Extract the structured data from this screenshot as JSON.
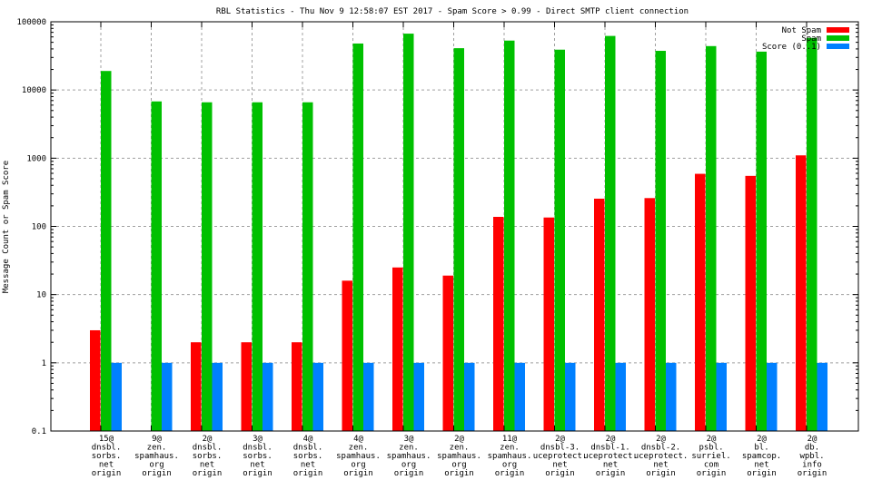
{
  "chart_data": {
    "type": "bar",
    "title": "RBL Statistics - Thu Nov  9 12:58:07 EST 2017 - Spam Score > 0.99 - Direct SMTP client connection",
    "xlabel": "",
    "ylabel": "Message Count or Spam Score",
    "yscale": "log",
    "ylim": [
      0.1,
      100000
    ],
    "yticks": [
      "100000",
      "10000",
      "1000",
      "100",
      "10",
      "1",
      "0.1"
    ],
    "grid": true,
    "legend_position": "top-right",
    "categories": [
      [
        "15@",
        "dnsbl.",
        "sorbs.",
        "net",
        "origin"
      ],
      [
        "9@",
        "zen.",
        "spamhaus.",
        "org",
        "origin"
      ],
      [
        "2@",
        "dnsbl.",
        "sorbs.",
        "net",
        "origin"
      ],
      [
        "3@",
        "dnsbl.",
        "sorbs.",
        "net",
        "origin"
      ],
      [
        "4@",
        "dnsbl.",
        "sorbs.",
        "net",
        "origin"
      ],
      [
        "4@",
        "zen.",
        "spamhaus.",
        "org",
        "origin"
      ],
      [
        "3@",
        "zen.",
        "spamhaus.",
        "org",
        "origin"
      ],
      [
        "2@",
        "zen.",
        "spamhaus.",
        "org",
        "origin"
      ],
      [
        "11@",
        "zen.",
        "spamhaus.",
        "org",
        "origin"
      ],
      [
        "2@",
        "dnsbl-3.",
        "uceprotect.",
        "net",
        "origin"
      ],
      [
        "2@",
        "dnsbl-1.",
        "uceprotect.",
        "net",
        "origin"
      ],
      [
        "2@",
        "dnsbl-2.",
        "uceprotect.",
        "net",
        "origin"
      ],
      [
        "2@",
        "psbl.",
        "surriel.",
        "com",
        "origin"
      ],
      [
        "2@",
        "bl.",
        "spamcop.",
        "net",
        "origin"
      ],
      [
        "2@",
        "db.",
        "wpbl.",
        "info",
        "origin"
      ]
    ],
    "series": [
      {
        "name": "Not Spam",
        "color": "#ff0000",
        "values": [
          3,
          0,
          2,
          2,
          2,
          16,
          25,
          19,
          138,
          135,
          255,
          260,
          590,
          550,
          1100
        ]
      },
      {
        "name": "Spam",
        "color": "#00c000",
        "values": [
          19000,
          6800,
          6600,
          6600,
          6600,
          48000,
          67000,
          41000,
          53000,
          39000,
          62000,
          37500,
          44000,
          36500,
          58000
        ]
      },
      {
        "name": "Score (0..1)",
        "color": "#0080ff",
        "values": [
          1,
          1,
          1,
          1,
          1,
          1,
          1,
          1,
          1,
          1,
          1,
          1,
          1,
          1,
          1
        ]
      }
    ]
  }
}
